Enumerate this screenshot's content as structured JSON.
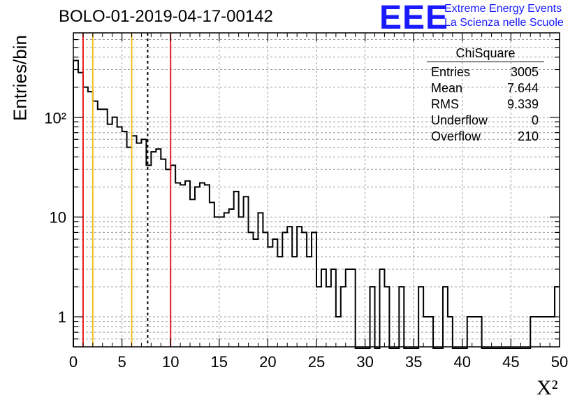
{
  "header": {
    "title": "BOLO-01-2019-04-17-00142",
    "logo_text": "EEE",
    "logo_line1": "Extreme Energy Events",
    "logo_line2": "La Scienza nelle Scuole"
  },
  "stats_box": {
    "title": "ChiSquare",
    "rows": [
      {
        "label": "Entries",
        "value": "3005"
      },
      {
        "label": "Mean",
        "value": "7.644"
      },
      {
        "label": "RMS",
        "value": "9.339"
      },
      {
        "label": "Underflow",
        "value": "0"
      },
      {
        "label": "Overflow",
        "value": "210"
      }
    ]
  },
  "chart_data": {
    "type": "histogram",
    "title": "BOLO-01-2019-04-17-00142",
    "xlabel": "X²",
    "ylabel": "Entries/bin",
    "xlim": [
      0,
      50
    ],
    "ylim": [
      0.5,
      700
    ],
    "yscale": "log",
    "grid": true,
    "bin_width": 0.5,
    "x_ticks": [
      "0",
      "5",
      "10",
      "15",
      "20",
      "25",
      "30",
      "35",
      "40",
      "45",
      "50"
    ],
    "y_ticks": [
      {
        "value": 1,
        "label": "1"
      },
      {
        "value": 10,
        "label": "10"
      },
      {
        "value": 100,
        "label": "10²"
      }
    ],
    "counts": [
      370,
      280,
      200,
      180,
      145,
      120,
      120,
      85,
      100,
      80,
      72,
      50,
      65,
      55,
      60,
      33,
      45,
      48,
      38,
      30,
      33,
      22,
      21,
      23,
      15,
      20,
      22,
      21,
      14,
      10,
      10,
      11,
      12,
      18,
      10,
      16,
      7,
      6,
      11,
      7,
      5,
      6,
      4,
      7,
      8,
      4,
      8,
      7,
      4,
      7,
      2,
      3,
      2,
      3,
      1,
      2,
      3,
      3,
      0,
      0,
      0,
      2,
      0,
      3,
      2,
      0,
      0,
      2,
      0,
      0,
      0,
      2,
      1,
      1,
      0,
      0,
      2,
      1,
      0,
      0,
      0,
      1,
      1,
      1,
      0,
      0,
      0,
      0,
      0,
      0,
      0,
      0,
      0,
      0,
      1,
      1,
      1,
      1,
      1,
      2
    ],
    "vertical_lines": [
      {
        "x": 1,
        "color": "#e8191c",
        "style": "solid"
      },
      {
        "x": 2,
        "color": "#f2c119",
        "style": "solid"
      },
      {
        "x": 6,
        "color": "#f2c119",
        "style": "solid"
      },
      {
        "x": 7.644,
        "color": "#000000",
        "style": "dashed"
      },
      {
        "x": 10,
        "color": "#e8191c",
        "style": "solid"
      }
    ]
  }
}
